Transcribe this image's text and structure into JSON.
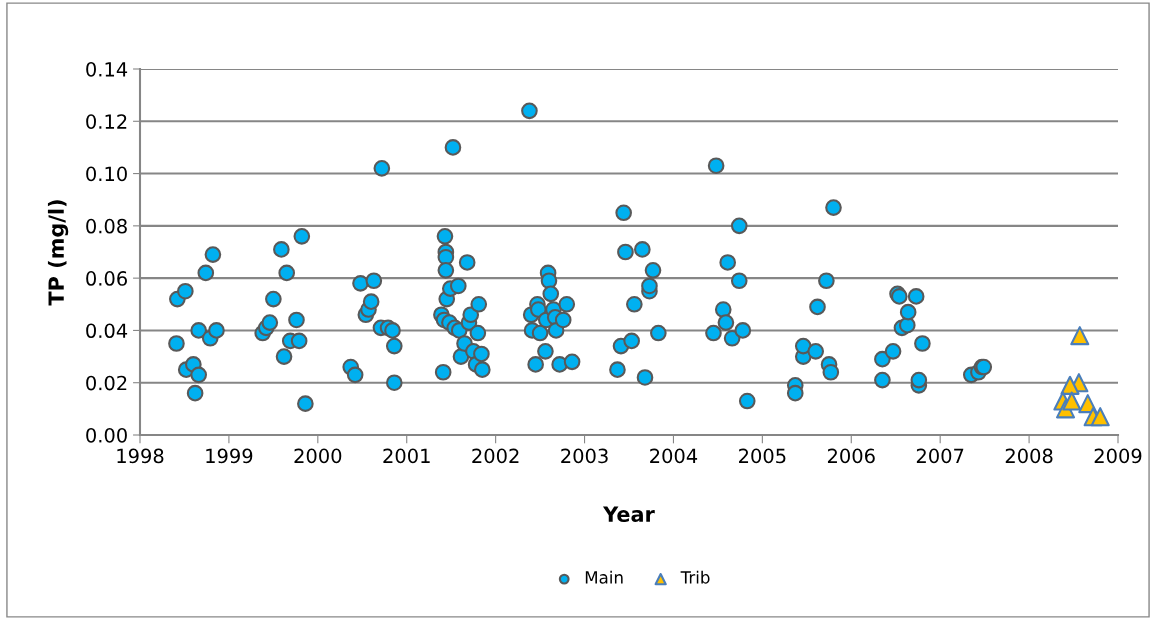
{
  "chart_data": {
    "type": "scatter",
    "xlabel": "Year",
    "ylabel": "TP (mg/l)",
    "xlim": [
      1998,
      2009
    ],
    "xticks": [
      1998,
      1999,
      2000,
      2001,
      2002,
      2003,
      2004,
      2005,
      2006,
      2007,
      2008,
      2009
    ],
    "ylim": [
      0,
      0.14
    ],
    "yticks": [
      {
        "value": 0,
        "label": "0.00"
      },
      {
        "value": 0.02,
        "label": "0.02"
      },
      {
        "value": 0.04,
        "label": "0.04"
      },
      {
        "value": 0.06,
        "label": "0.06"
      },
      {
        "value": 0.08,
        "label": "0.08"
      },
      {
        "value": 0.1,
        "label": "0.10"
      },
      {
        "value": 0.12,
        "label": "0.12"
      },
      {
        "value": 0.14,
        "label": "0.14"
      }
    ],
    "grid": "y",
    "legend": "bottom",
    "series": [
      {
        "name": "Main",
        "color": "#00b0f0",
        "marker": "circle",
        "x": [
          1998.41,
          1998.42,
          1998.51,
          1998.52,
          1998.6,
          1998.62,
          1998.66,
          1998.66,
          1998.74,
          1998.79,
          1998.82,
          1998.86,
          1999.38,
          1999.42,
          1999.46,
          1999.5,
          1999.59,
          1999.62,
          1999.65,
          1999.69,
          1999.76,
          1999.79,
          1999.82,
          1999.86,
          2000.37,
          2000.42,
          2000.48,
          2000.54,
          2000.57,
          2000.6,
          2000.63,
          2000.71,
          2000.72,
          2000.79,
          2000.84,
          2000.86,
          2000.86,
          2001.41,
          2001.39,
          2001.42,
          2001.43,
          2001.44,
          2001.44,
          2001.44,
          2001.45,
          2001.49,
          2001.52,
          2001.58,
          2001.48,
          2001.54,
          2001.59,
          2001.61,
          2001.65,
          2001.68,
          2001.7,
          2001.72,
          2001.75,
          2001.78,
          2001.8,
          2001.81,
          2001.84,
          2001.85,
          2002.38,
          2002.4,
          2002.41,
          2002.45,
          2002.47,
          2002.48,
          2002.5,
          2002.56,
          2002.57,
          2002.59,
          2002.6,
          2002.62,
          2002.65,
          2002.67,
          2002.68,
          2002.72,
          2002.76,
          2002.8,
          2002.86,
          2003.37,
          2003.41,
          2003.44,
          2003.46,
          2003.53,
          2003.56,
          2003.65,
          2003.68,
          2003.73,
          2003.73,
          2003.77,
          2003.83,
          2004.45,
          2004.48,
          2004.56,
          2004.59,
          2004.61,
          2004.66,
          2004.74,
          2004.74,
          2004.78,
          2004.83,
          2005.37,
          2005.37,
          2005.46,
          2005.46,
          2005.6,
          2005.62,
          2005.72,
          2005.75,
          2005.77,
          2005.8,
          2006.35,
          2006.35,
          2006.47,
          2006.52,
          2006.54,
          2006.57,
          2006.63,
          2006.64,
          2006.73,
          2006.76,
          2006.76,
          2006.8,
          2007.35,
          2007.43,
          2007.47,
          2007.49
        ],
        "values": [
          0.035,
          0.052,
          0.055,
          0.025,
          0.027,
          0.016,
          0.023,
          0.04,
          0.062,
          0.037,
          0.069,
          0.04,
          0.039,
          0.041,
          0.043,
          0.052,
          0.071,
          0.03,
          0.062,
          0.036,
          0.044,
          0.036,
          0.076,
          0.012,
          0.026,
          0.023,
          0.058,
          0.046,
          0.048,
          0.051,
          0.059,
          0.041,
          0.102,
          0.041,
          0.04,
          0.034,
          0.02,
          0.024,
          0.046,
          0.044,
          0.076,
          0.07,
          0.068,
          0.063,
          0.052,
          0.056,
          0.11,
          0.057,
          0.043,
          0.041,
          0.04,
          0.03,
          0.035,
          0.066,
          0.043,
          0.046,
          0.032,
          0.027,
          0.039,
          0.05,
          0.031,
          0.025,
          0.124,
          0.046,
          0.04,
          0.027,
          0.05,
          0.048,
          0.039,
          0.032,
          0.044,
          0.062,
          0.059,
          0.054,
          0.048,
          0.045,
          0.04,
          0.027,
          0.044,
          0.05,
          0.028,
          0.025,
          0.034,
          0.085,
          0.07,
          0.036,
          0.05,
          0.071,
          0.022,
          0.055,
          0.057,
          0.063,
          0.039,
          0.039,
          0.103,
          0.048,
          0.043,
          0.066,
          0.037,
          0.08,
          0.059,
          0.04,
          0.013,
          0.019,
          0.016,
          0.03,
          0.034,
          0.032,
          0.049,
          0.059,
          0.027,
          0.024,
          0.087,
          0.021,
          0.029,
          0.032,
          0.054,
          0.053,
          0.041,
          0.042,
          0.047,
          0.053,
          0.019,
          0.021,
          0.035,
          0.023,
          0.024,
          0.026,
          0.026
        ]
      },
      {
        "name": "Trib",
        "color": "#ffc000",
        "marker": "triangle",
        "x": [
          2008.57,
          2008.56,
          2008.46,
          2008.43,
          2008.38,
          2008.41,
          2008.48,
          2008.66,
          2008.72,
          2008.8
        ],
        "values": [
          0.038,
          0.02,
          0.019,
          null,
          0.013,
          0.01,
          0.013,
          0.012,
          0.007,
          0.007
        ]
      }
    ]
  }
}
